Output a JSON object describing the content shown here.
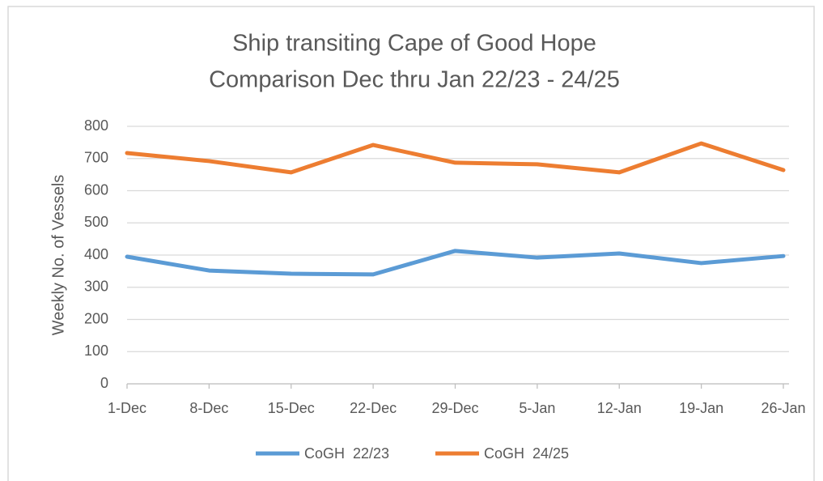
{
  "chart_data": {
    "type": "line",
    "title": [
      "Ship transiting Cape of Good Hope",
      "Comparison Dec thru Jan 22/23 - 24/25"
    ],
    "ylabel": "Weekly No. of Vessels",
    "categories": [
      "1-Dec",
      "8-Dec",
      "15-Dec",
      "22-Dec",
      "29-Dec",
      "5-Jan",
      "12-Jan",
      "19-Jan",
      "26-Jan"
    ],
    "series": [
      {
        "name": "CoGH  22/23",
        "color": "#5b9bd5",
        "values": [
          395,
          352,
          342,
          340,
          413,
          392,
          405,
          375,
          397
        ]
      },
      {
        "name": "CoGH  24/25",
        "color": "#ed7d31",
        "values": [
          717,
          692,
          657,
          742,
          687,
          682,
          657,
          747,
          664
        ]
      }
    ],
    "ylim": [
      0,
      800
    ],
    "yticks": [
      0,
      100,
      200,
      300,
      400,
      500,
      600,
      700,
      800
    ],
    "grid": true,
    "legend": "bottom"
  }
}
